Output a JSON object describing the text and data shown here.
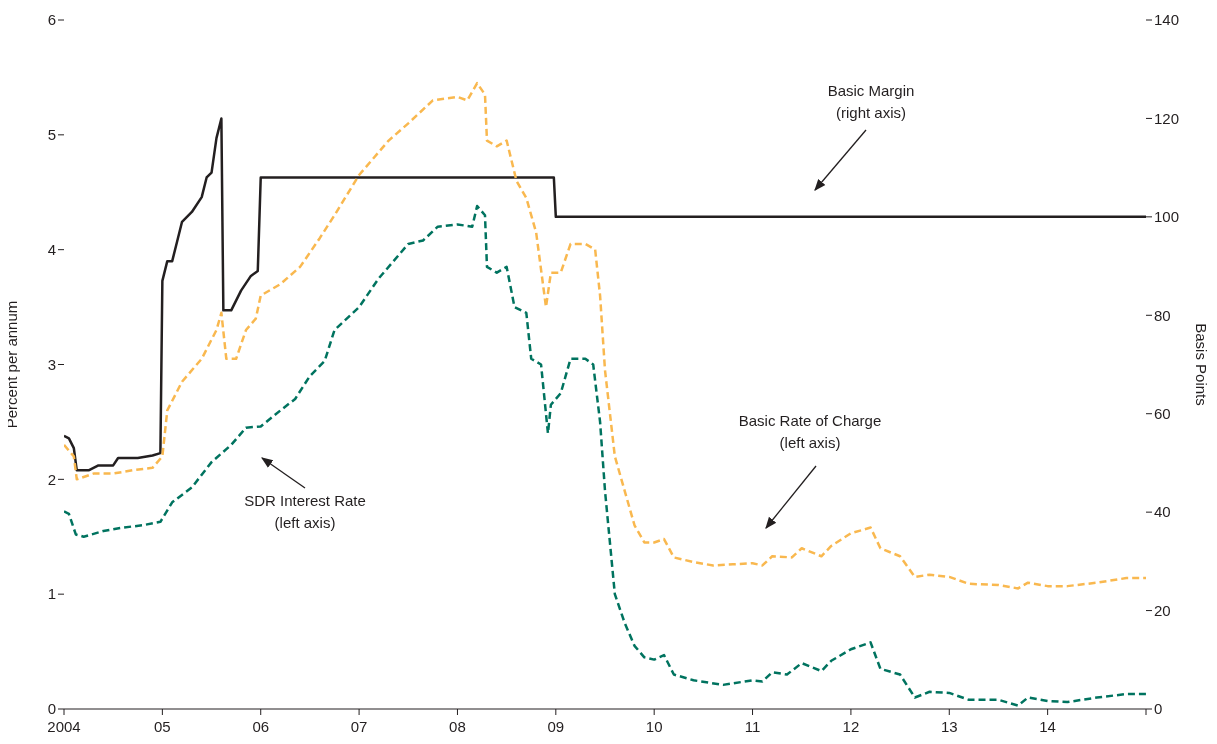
{
  "chart_data": {
    "type": "line",
    "ylabel": "Percent per annum",
    "y2label": "Basis Points",
    "xlim": [
      2004,
      2015
    ],
    "xticks": [
      {
        "value": 2004,
        "label": "2004"
      },
      {
        "value": 2005,
        "label": "05"
      },
      {
        "value": 2006,
        "label": "06"
      },
      {
        "value": 2007,
        "label": "07"
      },
      {
        "value": 2008,
        "label": "08"
      },
      {
        "value": 2009,
        "label": "09"
      },
      {
        "value": 2010,
        "label": "10"
      },
      {
        "value": 2011,
        "label": "11"
      },
      {
        "value": 2012,
        "label": "12"
      },
      {
        "value": 2013,
        "label": "13"
      },
      {
        "value": 2014,
        "label": "14"
      },
      {
        "value": 2015,
        "label": null
      }
    ],
    "ylim": [
      0,
      6
    ],
    "yticks": [
      0,
      1,
      2,
      3,
      4,
      5,
      6
    ],
    "y2lim": [
      0,
      140
    ],
    "y2ticks": [
      0,
      20,
      40,
      60,
      80,
      100,
      120,
      140
    ],
    "marker": "none",
    "series": [
      {
        "color": "#231f20",
        "axis": "y2",
        "line_style": "solid",
        "x": [
          2004.0,
          2004.05,
          2004.1,
          2004.13,
          2004.25,
          2004.35,
          2004.5,
          2004.55,
          2004.75,
          2004.9,
          2004.98,
          2005.0,
          2005.05,
          2005.1,
          2005.15,
          2005.2,
          2005.3,
          2005.4,
          2005.45,
          2005.5,
          2005.55,
          2005.6,
          2005.62,
          2005.7,
          2005.8,
          2005.9,
          2005.97,
          2006.0,
          2008.98,
          2009.0,
          2015.0
        ],
        "values": [
          55.5,
          55,
          53,
          48.5,
          48.5,
          49.5,
          49.5,
          51,
          51,
          51.5,
          52,
          87,
          91,
          91,
          95,
          99,
          101,
          104,
          108,
          109,
          116,
          120,
          81,
          81,
          85,
          88,
          89,
          108,
          108,
          100,
          100
        ]
      },
      {
        "color": "#f9b84f",
        "line_style": "dashed",
        "x": [
          2004.0,
          2004.1,
          2004.13,
          2004.3,
          2004.5,
          2004.7,
          2004.9,
          2005.0,
          2005.05,
          2005.2,
          2005.4,
          2005.55,
          2005.6,
          2005.65,
          2005.75,
          2005.85,
          2005.95,
          2006.0,
          2006.2,
          2006.4,
          2006.6,
          2006.75,
          2007.0,
          2007.3,
          2007.5,
          2007.75,
          2008.0,
          2008.1,
          2008.2,
          2008.28,
          2008.3,
          2008.4,
          2008.5,
          2008.6,
          2008.7,
          2008.8,
          2008.9,
          2008.95,
          2009.05,
          2009.15,
          2009.3,
          2009.4,
          2009.45,
          2009.5,
          2009.6,
          2009.7,
          2009.8,
          2009.9,
          2010.0,
          2010.1,
          2010.2,
          2010.4,
          2010.6,
          2010.8,
          2011.0,
          2011.1,
          2011.2,
          2011.4,
          2011.5,
          2011.7,
          2011.8,
          2012.0,
          2012.2,
          2012.3,
          2012.5,
          2012.65,
          2012.8,
          2013.0,
          2013.2,
          2013.5,
          2013.7,
          2013.8,
          2014.0,
          2014.2,
          2014.5,
          2014.8,
          2015.0
        ],
        "values": [
          2.3,
          2.2,
          2.0,
          2.05,
          2.05,
          2.08,
          2.1,
          2.2,
          2.6,
          2.85,
          3.05,
          3.3,
          3.45,
          3.05,
          3.05,
          3.3,
          3.4,
          3.6,
          3.7,
          3.85,
          4.1,
          4.3,
          4.65,
          4.95,
          5.1,
          5.3,
          5.33,
          5.3,
          5.45,
          5.35,
          4.95,
          4.9,
          4.95,
          4.6,
          4.45,
          4.15,
          3.5,
          3.8,
          3.8,
          4.05,
          4.05,
          4.0,
          3.6,
          2.95,
          2.2,
          1.9,
          1.6,
          1.45,
          1.45,
          1.48,
          1.32,
          1.28,
          1.25,
          1.26,
          1.27,
          1.25,
          1.33,
          1.32,
          1.4,
          1.33,
          1.42,
          1.53,
          1.58,
          1.4,
          1.33,
          1.15,
          1.17,
          1.15,
          1.09,
          1.08,
          1.05,
          1.1,
          1.07,
          1.07,
          1.1,
          1.14,
          1.14
        ]
      },
      {
        "color": "#00735f",
        "line_style": "dashed",
        "x": [
          2004.0,
          2004.05,
          2004.12,
          2004.2,
          2004.4,
          2004.6,
          2004.8,
          2004.98,
          2005.1,
          2005.3,
          2005.5,
          2005.7,
          2005.85,
          2006.0,
          2006.2,
          2006.35,
          2006.5,
          2006.65,
          2006.75,
          2007.0,
          2007.2,
          2007.35,
          2007.5,
          2007.65,
          2007.8,
          2008.0,
          2008.15,
          2008.2,
          2008.28,
          2008.3,
          2008.4,
          2008.5,
          2008.58,
          2008.7,
          2008.75,
          2008.85,
          2008.92,
          2008.95,
          2009.05,
          2009.15,
          2009.3,
          2009.38,
          2009.45,
          2009.5,
          2009.6,
          2009.7,
          2009.8,
          2009.9,
          2010.0,
          2010.1,
          2010.2,
          2010.4,
          2010.7,
          2011.0,
          2011.1,
          2011.2,
          2011.35,
          2011.5,
          2011.7,
          2011.8,
          2012.0,
          2012.2,
          2012.3,
          2012.5,
          2012.65,
          2012.8,
          2013.0,
          2013.2,
          2013.5,
          2013.7,
          2013.8,
          2014.0,
          2014.2,
          2014.5,
          2014.8,
          2015.0
        ],
        "values": [
          1.72,
          1.7,
          1.52,
          1.5,
          1.55,
          1.58,
          1.6,
          1.63,
          1.8,
          1.93,
          2.15,
          2.3,
          2.45,
          2.46,
          2.6,
          2.7,
          2.9,
          3.03,
          3.3,
          3.5,
          3.75,
          3.9,
          4.05,
          4.08,
          4.2,
          4.22,
          4.2,
          4.38,
          4.3,
          3.85,
          3.8,
          3.85,
          3.5,
          3.45,
          3.05,
          3.0,
          2.4,
          2.65,
          2.75,
          3.05,
          3.05,
          3.0,
          2.5,
          1.9,
          1.0,
          0.75,
          0.55,
          0.45,
          0.43,
          0.47,
          0.3,
          0.25,
          0.21,
          0.25,
          0.24,
          0.32,
          0.3,
          0.4,
          0.33,
          0.42,
          0.52,
          0.58,
          0.35,
          0.3,
          0.1,
          0.15,
          0.14,
          0.08,
          0.08,
          0.03,
          0.1,
          0.07,
          0.06,
          0.1,
          0.13,
          0.13
        ]
      }
    ],
    "annotations": [
      "SDR Interest Rate\n(left axis)",
      "Basic Rate of Charge\n(left axis)",
      "Basic Margin\n(right axis)"
    ]
  }
}
